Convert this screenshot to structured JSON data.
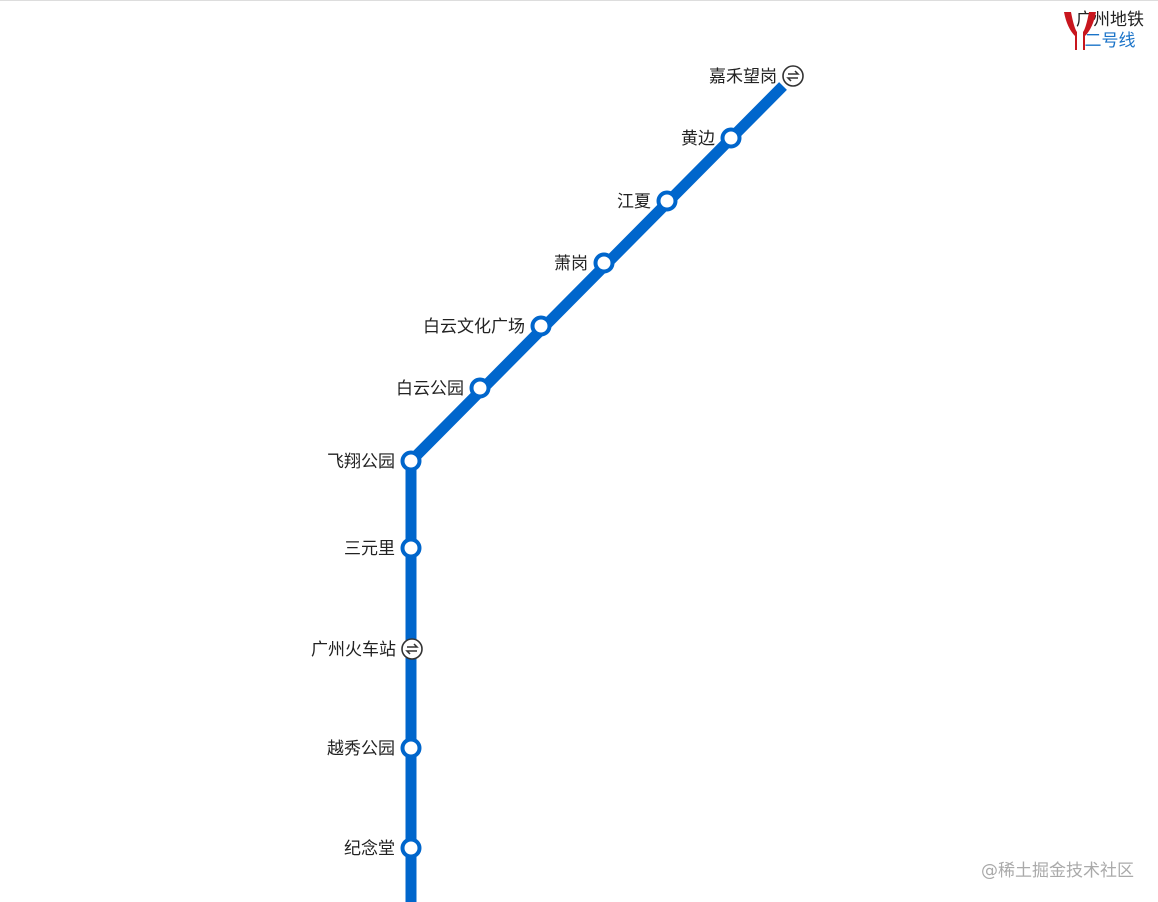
{
  "brand": {
    "name": "广州地铁",
    "line_name": "二号线",
    "logo_color": "#c8161e",
    "line_label_color": "#1a73c8"
  },
  "line_color": "#0066cc",
  "stations": [
    {
      "name": "嘉禾望岗",
      "interchange": true
    },
    {
      "name": "黄边",
      "interchange": false
    },
    {
      "name": "江夏",
      "interchange": false
    },
    {
      "name": "萧岗",
      "interchange": false
    },
    {
      "name": "白云文化广场",
      "interchange": false
    },
    {
      "name": "白云公园",
      "interchange": false
    },
    {
      "name": "飞翔公园",
      "interchange": false
    },
    {
      "name": "三元里",
      "interchange": false
    },
    {
      "name": "广州火车站",
      "interchange": true
    },
    {
      "name": "越秀公园",
      "interchange": false
    },
    {
      "name": "纪念堂",
      "interchange": false
    }
  ],
  "interchange_icon": "transfer-arrows-icon",
  "watermark": "@稀土掘金技术社区"
}
